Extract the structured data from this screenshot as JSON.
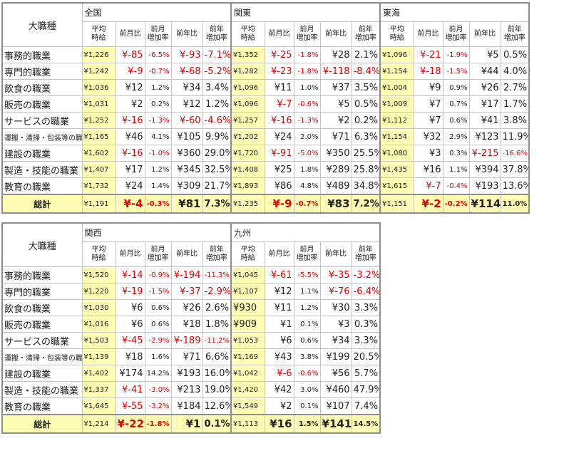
{
  "corner_label": "大職種",
  "total_label": "総計",
  "col_headers": [
    "平均\n時給",
    "前月比",
    "前月\n増加率",
    "前年比",
    "前年\n増加率"
  ],
  "row_labels": [
    "事務的職業",
    "専門的職業",
    "飲食の職業",
    "販売の職業",
    "サービスの職業",
    "運搬・清掃・包装等の職業",
    "建設の職業",
    "製造・技能の職業",
    "教育の職業"
  ],
  "tables": [
    {
      "regions": [
        {
          "name": "全国",
          "rows": [
            [
              "¥1,226",
              "¥-85",
              "-6.5%",
              "¥-93",
              "-7.1%"
            ],
            [
              "¥1,242",
              "¥-9",
              "-0.7%",
              "¥-68",
              "-5.2%"
            ],
            [
              "¥1,036",
              "¥12",
              "1.2%",
              "¥34",
              "3.4%"
            ],
            [
              "¥1,031",
              "¥2",
              "0.2%",
              "¥12",
              "1.2%"
            ],
            [
              "¥1,252",
              "¥-16",
              "-1.3%",
              "¥-60",
              "-4.6%"
            ],
            [
              "¥1,165",
              "¥46",
              "4.1%",
              "¥105",
              "9.9%"
            ],
            [
              "¥1,602",
              "¥-16",
              "-1.0%",
              "¥360",
              "29.0%"
            ],
            [
              "¥1,407",
              "¥17",
              "1.2%",
              "¥345",
              "32.5%"
            ],
            [
              "¥1,732",
              "¥24",
              "1.4%",
              "¥309",
              "21.7%"
            ]
          ],
          "total": [
            "¥1,191",
            "¥-4",
            "-0.3%",
            "¥81",
            "7.3%"
          ]
        },
        {
          "name": "関東",
          "rows": [
            [
              "¥1,352",
              "¥-25",
              "-1.8%",
              "¥28",
              "2.1%"
            ],
            [
              "¥1,282",
              "¥-23",
              "-1.8%",
              "¥-118",
              "-8.4%"
            ],
            [
              "¥1,096",
              "¥11",
              "1.0%",
              "¥37",
              "3.5%"
            ],
            [
              "¥1,096",
              "¥-7",
              "-0.6%",
              "¥5",
              "0.5%"
            ],
            [
              "¥1,257",
              "¥-16",
              "-1.3%",
              "¥2",
              "0.2%"
            ],
            [
              "¥1,202",
              "¥24",
              "2.0%",
              "¥71",
              "6.3%"
            ],
            [
              "¥1,720",
              "¥-91",
              "-5.0%",
              "¥350",
              "25.5%"
            ],
            [
              "¥1,408",
              "¥25",
              "1.8%",
              "¥289",
              "25.8%"
            ],
            [
              "¥1,893",
              "¥86",
              "4.8%",
              "¥489",
              "34.8%"
            ]
          ],
          "total": [
            "¥1,235",
            "¥-9",
            "-0.7%",
            "¥83",
            "7.2%"
          ]
        },
        {
          "name": "東海",
          "rows": [
            [
              "¥1,096",
              "¥-21",
              "-1.9%",
              "¥5",
              "0.5%"
            ],
            [
              "¥1,154",
              "¥-18",
              "-1.5%",
              "¥44",
              "4.0%"
            ],
            [
              "¥1,004",
              "¥9",
              "0.9%",
              "¥26",
              "2.7%"
            ],
            [
              "¥1,009",
              "¥7",
              "0.7%",
              "¥17",
              "1.7%"
            ],
            [
              "¥1,112",
              "¥7",
              "0.6%",
              "¥41",
              "3.8%"
            ],
            [
              "¥1,154",
              "¥32",
              "2.9%",
              "¥123",
              "11.9%"
            ],
            [
              "¥1,080",
              "¥3",
              "0.3%",
              "¥-215",
              "-16.6%"
            ],
            [
              "¥1,435",
              "¥16",
              "1.1%",
              "¥394",
              "37.8%"
            ],
            [
              "¥1,615",
              "¥-7",
              "-0.4%",
              "¥193",
              "13.6%"
            ]
          ],
          "total": [
            "¥1,151",
            "¥-2",
            "-0.2%",
            "¥114",
            "11.0%"
          ]
        }
      ]
    },
    {
      "regions": [
        {
          "name": "関西",
          "rows": [
            [
              "¥1,520",
              "¥-14",
              "-0.9%",
              "¥-194",
              "-11.3%"
            ],
            [
              "¥1,220",
              "¥-19",
              "-1.5%",
              "¥-37",
              "-2.9%"
            ],
            [
              "¥1,030",
              "¥6",
              "0.6%",
              "¥26",
              "2.6%"
            ],
            [
              "¥1,016",
              "¥6",
              "0.6%",
              "¥18",
              "1.8%"
            ],
            [
              "¥1,503",
              "¥-45",
              "-2.9%",
              "¥-189",
              "-11.2%"
            ],
            [
              "¥1,139",
              "¥18",
              "1.6%",
              "¥71",
              "6.6%"
            ],
            [
              "¥1,402",
              "¥174",
              "14.2%",
              "¥193",
              "16.0%"
            ],
            [
              "¥1,337",
              "¥-41",
              "-3.0%",
              "¥213",
              "19.0%"
            ],
            [
              "¥1,645",
              "¥-55",
              "-3.2%",
              "¥184",
              "12.6%"
            ]
          ],
          "total": [
            "¥1,214",
            "¥-22",
            "-1.8%",
            "¥1",
            "0.1%"
          ]
        },
        {
          "name": "九州",
          "rows": [
            [
              "¥1,045",
              "¥-61",
              "-5.5%",
              "¥-35",
              "-3.2%"
            ],
            [
              "¥1,107",
              "¥12",
              "1.1%",
              "¥-76",
              "-6.4%"
            ],
            [
              "¥930",
              "¥11",
              "1.2%",
              "¥30",
              "3.3%"
            ],
            [
              "¥909",
              "¥1",
              "0.1%",
              "¥3",
              "0.3%"
            ],
            [
              "¥1,053",
              "¥6",
              "0.6%",
              "¥34",
              "3.3%"
            ],
            [
              "¥1,169",
              "¥43",
              "3.8%",
              "¥199",
              "20.5%"
            ],
            [
              "¥1,042",
              "¥-6",
              "-0.6%",
              "¥56",
              "5.7%"
            ],
            [
              "¥1,420",
              "¥42",
              "3.0%",
              "¥460",
              "47.9%"
            ],
            [
              "¥1,549",
              "¥2",
              "0.1%",
              "¥107",
              "7.4%"
            ]
          ],
          "total": [
            "¥1,113",
            "¥16",
            "1.5%",
            "¥141",
            "14.5%"
          ]
        }
      ]
    }
  ]
}
